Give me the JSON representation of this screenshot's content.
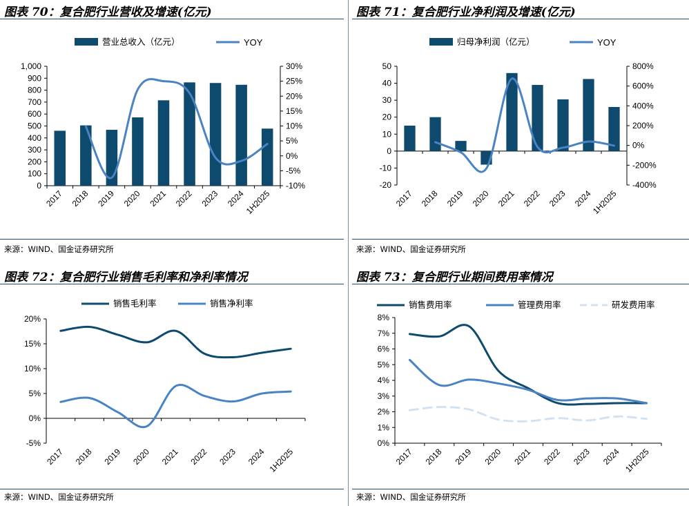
{
  "panels": [
    {
      "title": "图表 70：复合肥行业营收及增速(亿元)",
      "source": "来源：WIND、国金证券研究所",
      "chart_data": {
        "type": "bar",
        "categories": [
          "2017",
          "2018",
          "2019",
          "2020",
          "2021",
          "2022",
          "2023",
          "2024",
          "1H2025"
        ],
        "series": [
          {
            "name": "营业总收入（亿元）",
            "kind": "bar",
            "axis": "left",
            "color": "#0d4a6e",
            "values": [
              460,
              505,
              468,
              572,
              715,
              865,
              860,
              845,
              478
            ]
          },
          {
            "name": "YOY",
            "kind": "line",
            "axis": "right",
            "color": "#4a83c4",
            "values": [
              null,
              9.8,
              -7.3,
              22.2,
              25.0,
              21.0,
              -0.6,
              -1.7,
              4.0
            ]
          }
        ],
        "ylim": [
          0,
          1000
        ],
        "y_ticks": [
          "0",
          "100",
          "200",
          "300",
          "400",
          "500",
          "600",
          "700",
          "800",
          "900",
          "1,000"
        ],
        "y2lim": [
          -10,
          30
        ],
        "y2_ticks": [
          "-10%",
          "-5%",
          "0%",
          "5%",
          "10%",
          "15%",
          "20%",
          "25%",
          "30%"
        ]
      }
    },
    {
      "title": "图表 71：复合肥行业净利润及增速(亿元)",
      "source": "来源：WIND、国金证券研究所",
      "chart_data": {
        "type": "bar",
        "categories": [
          "2017",
          "2018",
          "2019",
          "2020",
          "2021",
          "2022",
          "2023",
          "2024",
          "1H2025"
        ],
        "series": [
          {
            "name": "归母净利润（亿元）",
            "kind": "bar",
            "axis": "left",
            "color": "#0d4a6e",
            "values": [
              15,
              20,
              6,
              -8,
              46,
              39,
              30.5,
              42.5,
              26
            ]
          },
          {
            "name": "YOY",
            "kind": "line",
            "axis": "right",
            "color": "#4a83c4",
            "values": [
              null,
              33,
              -70,
              -233,
              675,
              -15,
              -22,
              39,
              -2
            ]
          }
        ],
        "ylim": [
          -20,
          50
        ],
        "y_ticks": [
          "-20",
          "-10",
          "0",
          "10",
          "20",
          "30",
          "40",
          "50"
        ],
        "y2lim": [
          -400,
          800
        ],
        "y2_ticks": [
          "-400%",
          "-200%",
          "0%",
          "200%",
          "400%",
          "600%",
          "800%"
        ]
      }
    },
    {
      "title": "图表 72：复合肥行业销售毛利率和净利率情况",
      "source": "来源：WIND、国金证券研究所",
      "chart_data": {
        "type": "line",
        "categories": [
          "2017",
          "2018",
          "2019",
          "2020",
          "2021",
          "2022",
          "2023",
          "2024",
          "1H2025"
        ],
        "series": [
          {
            "name": "销售毛利率",
            "color": "#0d4a6e",
            "dash": false,
            "values": [
              17.6,
              18.4,
              16.8,
              15.3,
              17.6,
              13.0,
              12.3,
              13.2,
              14.0
            ]
          },
          {
            "name": "销售净利率",
            "color": "#4a83c4",
            "dash": false,
            "values": [
              3.3,
              4.1,
              1.2,
              -1.6,
              6.5,
              4.5,
              3.4,
              5.0,
              5.4
            ]
          }
        ],
        "ylim": [
          -5,
          20
        ],
        "y_ticks": [
          "-5%",
          "0%",
          "5%",
          "10%",
          "15%",
          "20%"
        ]
      }
    },
    {
      "title": "图表 73：复合肥行业期间费用率情况",
      "source": "来源：WIND、国金证券研究所",
      "chart_data": {
        "type": "line",
        "categories": [
          "2017",
          "2018",
          "2019",
          "2020",
          "2021",
          "2022",
          "2023",
          "2024",
          "1H2025"
        ],
        "series": [
          {
            "name": "销售费用率",
            "color": "#0d4a6e",
            "dash": false,
            "values": [
              6.95,
              6.8,
              7.45,
              4.6,
              3.5,
              2.55,
              2.5,
              2.55,
              2.55
            ]
          },
          {
            "name": "管理费用率",
            "color": "#4a83c4",
            "dash": false,
            "values": [
              5.3,
              3.7,
              4.05,
              3.8,
              3.4,
              2.75,
              2.85,
              2.85,
              2.55
            ]
          },
          {
            "name": "研发费用率",
            "color": "#d3e2f1",
            "dash": true,
            "values": [
              2.1,
              2.3,
              2.15,
              1.5,
              1.4,
              1.6,
              1.45,
              1.7,
              1.55
            ]
          }
        ],
        "ylim": [
          0,
          8
        ],
        "y_ticks": [
          "0%",
          "1%",
          "2%",
          "3%",
          "4%",
          "5%",
          "6%",
          "7%",
          "8%"
        ]
      }
    }
  ]
}
